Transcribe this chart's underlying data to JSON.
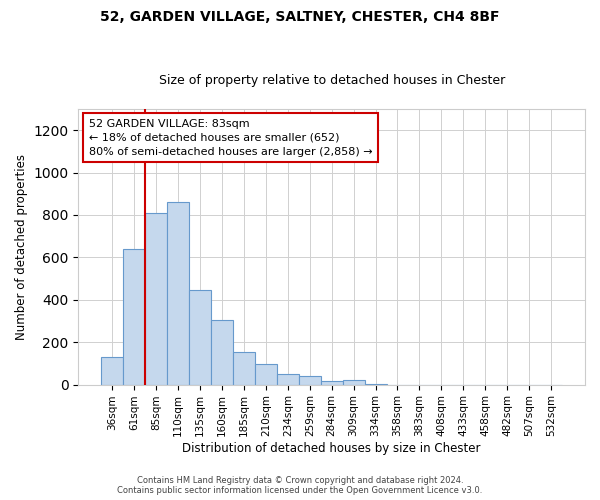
{
  "title": "52, GARDEN VILLAGE, SALTNEY, CHESTER, CH4 8BF",
  "subtitle": "Size of property relative to detached houses in Chester",
  "xlabel": "Distribution of detached houses by size in Chester",
  "ylabel": "Number of detached properties",
  "categories": [
    "36sqm",
    "61sqm",
    "85sqm",
    "110sqm",
    "135sqm",
    "160sqm",
    "185sqm",
    "210sqm",
    "234sqm",
    "259sqm",
    "284sqm",
    "309sqm",
    "334sqm",
    "358sqm",
    "383sqm",
    "408sqm",
    "433sqm",
    "458sqm",
    "482sqm",
    "507sqm",
    "532sqm"
  ],
  "values": [
    130,
    640,
    810,
    860,
    445,
    305,
    155,
    95,
    50,
    40,
    15,
    20,
    5,
    0,
    0,
    0,
    0,
    0,
    0,
    0,
    0
  ],
  "bar_color": "#c5d8ed",
  "bar_edgecolor": "#6699cc",
  "vline_index": 2,
  "vline_color": "#cc0000",
  "ylim": [
    0,
    1300
  ],
  "yticks": [
    0,
    200,
    400,
    600,
    800,
    1000,
    1200
  ],
  "annotation_text": "52 GARDEN VILLAGE: 83sqm\n← 18% of detached houses are smaller (652)\n80% of semi-detached houses are larger (2,858) →",
  "annotation_box_facecolor": "#ffffff",
  "annotation_box_edgecolor": "#cc0000",
  "footer_line1": "Contains HM Land Registry data © Crown copyright and database right 2024.",
  "footer_line2": "Contains public sector information licensed under the Open Government Licence v3.0.",
  "title_fontsize": 10,
  "subtitle_fontsize": 9,
  "axis_label_fontsize": 8.5,
  "tick_fontsize": 7.5,
  "annotation_fontsize": 8,
  "footer_fontsize": 6
}
